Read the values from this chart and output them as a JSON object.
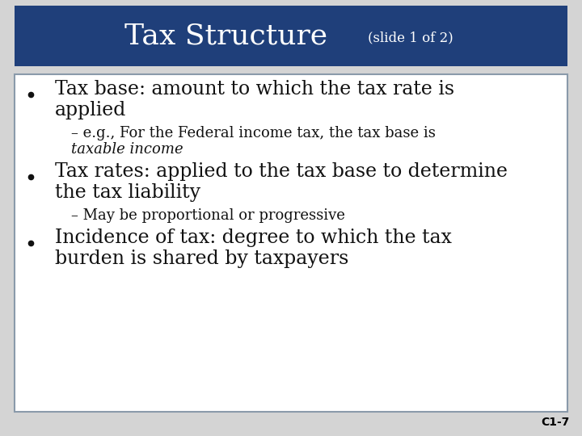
{
  "title": "Tax Structure",
  "title_subtitle": "(slide 1 of 2)",
  "title_bg_color": "#1f3f7a",
  "title_text_color": "#ffffff",
  "body_bg_color": "#ffffff",
  "border_color": "#8a9aaa",
  "slide_bg_color": "#d4d4d4",
  "bullet_color": "#111111",
  "page_label": "C1-7",
  "title_fontsize": 26,
  "subtitle_fontsize": 12,
  "bullet1_fontsize": 17,
  "bullet2_fontsize": 13,
  "page_label_fontsize": 10
}
